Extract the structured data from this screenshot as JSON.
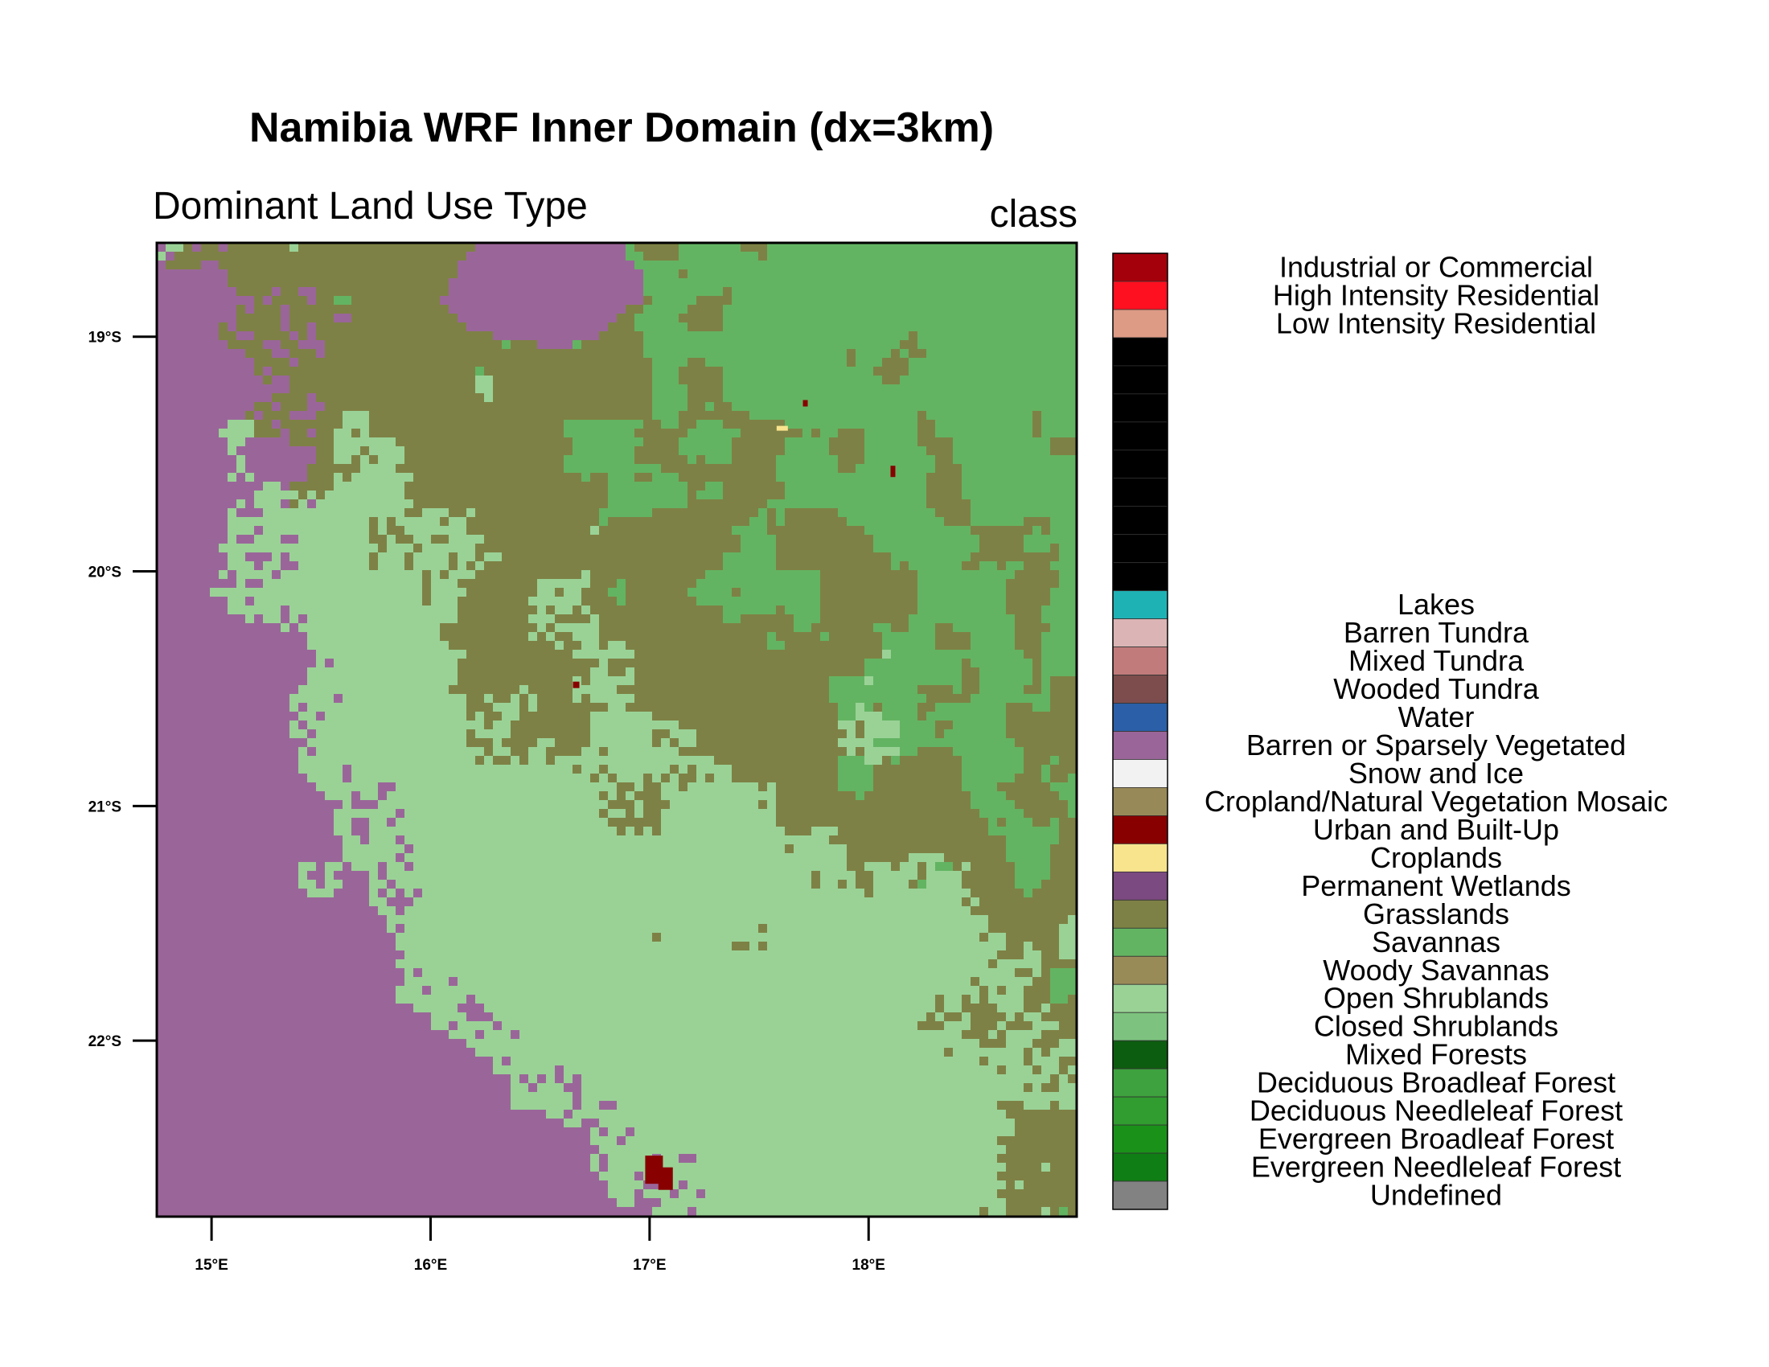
{
  "figure": {
    "title": "Namibia WRF Inner Domain (dx=3km)",
    "left_subtitle": "Dominant Land Use Type",
    "right_subtitle": "class"
  },
  "map": {
    "projection": "lat-lon",
    "lon_range": [
      14.75,
      18.95
    ],
    "lat_range": [
      -22.75,
      -18.6
    ],
    "x_ticks": [
      {
        "value": 15,
        "label": "15°E"
      },
      {
        "value": 16,
        "label": "16°E"
      },
      {
        "value": 17,
        "label": "17°E"
      },
      {
        "value": 18,
        "label": "18°E"
      }
    ],
    "y_ticks": [
      {
        "value": -19,
        "label": "19°S"
      },
      {
        "value": -20,
        "label": "20°S"
      },
      {
        "value": -21,
        "label": "21°S"
      },
      {
        "value": -22,
        "label": "22°S"
      }
    ],
    "dominant_classes": {
      "background": "Open Shrublands",
      "west_south": "Barren or Sparsely Vegetated",
      "north_east": "Grasslands",
      "savanna_patches": "Savannas",
      "urban": "Urban and Built-Up"
    }
  },
  "legend": {
    "entries": [
      {
        "label": "Industrial or Commercial",
        "color": "#A3000B"
      },
      {
        "label": "High Intensity Residential",
        "color": "#FF1020"
      },
      {
        "label": "Low Intensity Residential",
        "color": "#DD9A85"
      },
      {
        "label": "",
        "color": "#000000"
      },
      {
        "label": "",
        "color": "#000000"
      },
      {
        "label": "",
        "color": "#000000"
      },
      {
        "label": "",
        "color": "#000000"
      },
      {
        "label": "",
        "color": "#000000"
      },
      {
        "label": "",
        "color": "#000000"
      },
      {
        "label": "",
        "color": "#000000"
      },
      {
        "label": "",
        "color": "#000000"
      },
      {
        "label": "",
        "color": "#000000"
      },
      {
        "label": "Lakes",
        "color": "#1FB2B5"
      },
      {
        "label": "Barren Tundra",
        "color": "#DBB5B5"
      },
      {
        "label": "Mixed Tundra",
        "color": "#C27B7B"
      },
      {
        "label": "Wooded Tundra",
        "color": "#7D4D4D"
      },
      {
        "label": "Water",
        "color": "#2B60A8"
      },
      {
        "label": "Barren or Sparsely Vegetated",
        "color": "#9A6699"
      },
      {
        "label": "Snow and Ice",
        "color": "#F2F2F2"
      },
      {
        "label": "Cropland/Natural Vegetation Mosaic",
        "color": "#988A58"
      },
      {
        "label": "Urban and Built-Up",
        "color": "#880000"
      },
      {
        "label": "Croplands",
        "color": "#F9E48E"
      },
      {
        "label": "Permanent Wetlands",
        "color": "#7B4A80"
      },
      {
        "label": "Grasslands",
        "color": "#7E8145"
      },
      {
        "label": "Savannas",
        "color": "#63B462"
      },
      {
        "label": "Woody Savannas",
        "color": "#998B58"
      },
      {
        "label": "Open Shrublands",
        "color": "#9AD296"
      },
      {
        "label": "Closed Shrublands",
        "color": "#7DC37F"
      },
      {
        "label": "Mixed Forests",
        "color": "#0D5D10"
      },
      {
        "label": "Deciduous Broadleaf Forest",
        "color": "#3EA23E"
      },
      {
        "label": "Deciduous Needleleaf Forest",
        "color": "#319C30"
      },
      {
        "label": "Evergreen Broadleaf Forest",
        "color": "#1A921A"
      },
      {
        "label": "Evergreen Needleleaf Forest",
        "color": "#0F7E14"
      },
      {
        "label": "Undefined",
        "color": "#828282"
      }
    ]
  }
}
